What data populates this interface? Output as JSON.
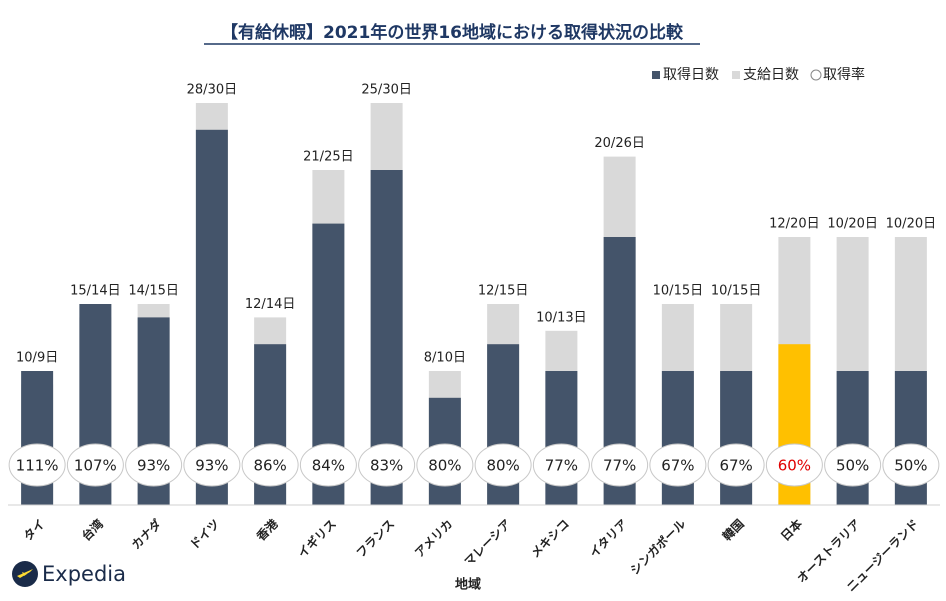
{
  "chart_data": {
    "type": "bar",
    "title": "【有給休暇】2021年の世界16地域における取得状況の比較",
    "x_label": "地域",
    "logo": "Expedia",
    "categories": [
      "タイ",
      "台湾",
      "カナダ",
      "ドイツ",
      "香港",
      "イギリス",
      "フランス",
      "アメリカ",
      "マレーシア",
      "メキシコ",
      "イタリア",
      "シンガポール",
      "韓国",
      "日本",
      "オーストラリア",
      "ニュージーランド"
    ],
    "series": [
      {
        "name": "取得日数",
        "color": "#44546a",
        "colors": [
          "#44546a",
          "#44546a",
          "#44546a",
          "#44546a",
          "#44546a",
          "#44546a",
          "#44546a",
          "#44546a",
          "#44546a",
          "#44546a",
          "#44546a",
          "#44546a",
          "#44546a",
          "#ffc000",
          "#44546a",
          "#44546a"
        ],
        "values": [
          10,
          15,
          14,
          28,
          12,
          21,
          25,
          8,
          12,
          10,
          20,
          10,
          10,
          12,
          10,
          10
        ],
        "value_labels": [
          "10/9日",
          "15/14日",
          "14/15日",
          "28/30日",
          "12/14日",
          "21/25日",
          "25/30日",
          "8/10日",
          "12/15日",
          "10/13日",
          "20/26日",
          "10/15日",
          "10/15日",
          "12/20日",
          "10/20日",
          "10/20日"
        ]
      },
      {
        "name": "支給日数",
        "color": "#d9d9d9",
        "values": [
          9,
          14,
          15,
          30,
          14,
          25,
          30,
          10,
          15,
          13,
          26,
          15,
          15,
          20,
          20,
          20
        ]
      },
      {
        "name": "取得率",
        "color": "#ffffff",
        "label_colors": [
          "#222222",
          "#222222",
          "#222222",
          "#222222",
          "#222222",
          "#222222",
          "#222222",
          "#222222",
          "#222222",
          "#222222",
          "#222222",
          "#222222",
          "#222222",
          "#e00000",
          "#222222",
          "#222222"
        ],
        "values": [
          111,
          107,
          93,
          93,
          86,
          84,
          83,
          80,
          80,
          77,
          77,
          67,
          67,
          60,
          50,
          50
        ],
        "value_labels": [
          "111%",
          "107%",
          "93%",
          "93%",
          "86%",
          "84%",
          "83%",
          "80%",
          "80%",
          "77%",
          "77%",
          "67%",
          "67%",
          "60%",
          "50%",
          "50%"
        ]
      }
    ],
    "ylim": [
      0,
      30
    ],
    "legend": "top-right",
    "grid": false
  }
}
